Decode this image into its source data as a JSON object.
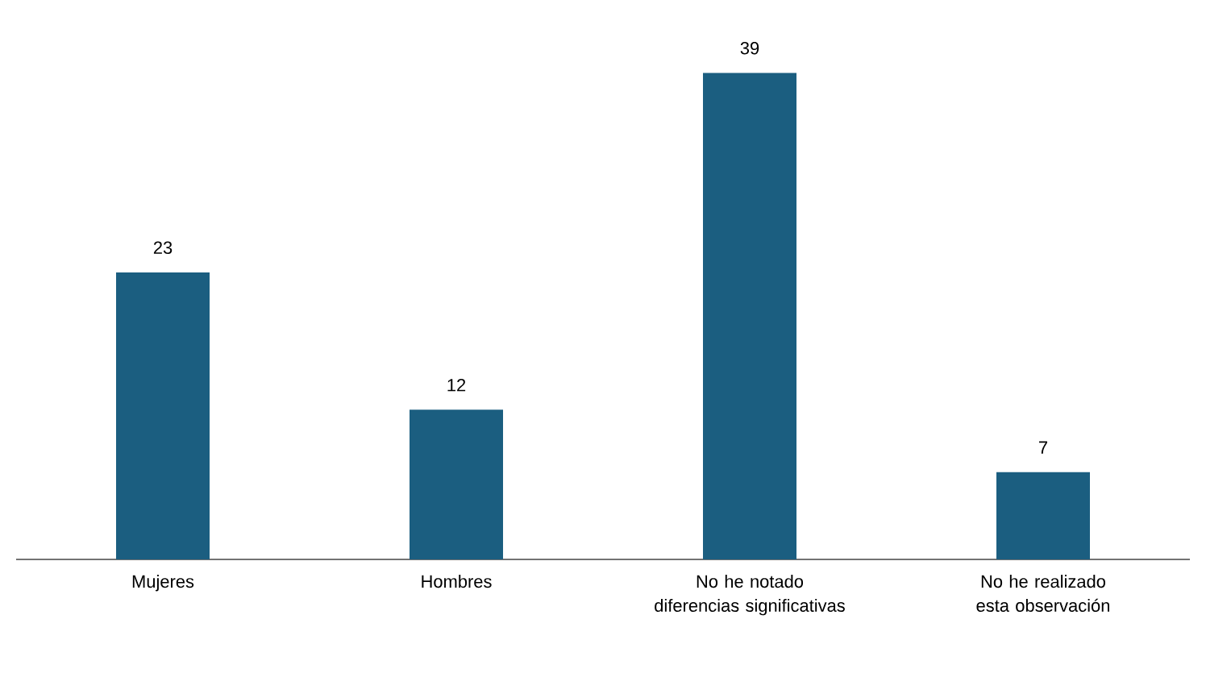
{
  "chart_data": {
    "type": "bar",
    "categories": [
      "Mujeres",
      "Hombres",
      "No he notado diferencias significativas",
      "No he realizado esta observación"
    ],
    "values": [
      23,
      12,
      39,
      7
    ],
    "color": "#1b5e80",
    "data_labels": true
  }
}
